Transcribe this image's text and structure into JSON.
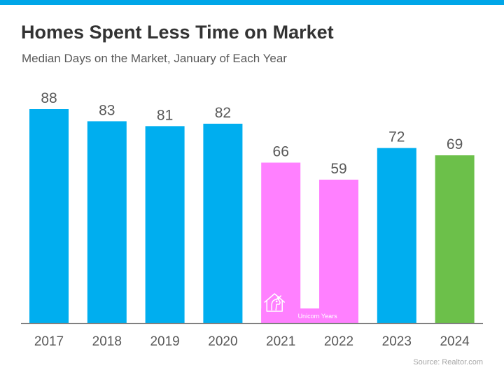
{
  "title": "Homes Spent Less Time on Market",
  "subtitle": "Median Days on the Market, January of Each Year",
  "source": "Source: Realtor.com",
  "colors": {
    "top_bar": "#00A6E8",
    "default_bar": "#00AEEF",
    "unicorn_bar": "#FF80FF",
    "latest_bar": "#6CC04A",
    "axis": "#7F7F7F",
    "labels": "#595959"
  },
  "unicorn_band": {
    "label": "Unicorn Years",
    "icon": "house-unicorn-icon",
    "color": "#FF80FF",
    "years": [
      "2021",
      "2022"
    ]
  },
  "chart_data": {
    "type": "bar",
    "categories": [
      "2017",
      "2018",
      "2019",
      "2020",
      "2021",
      "2022",
      "2023",
      "2024"
    ],
    "values": [
      88,
      83,
      81,
      82,
      66,
      59,
      72,
      69
    ],
    "bar_colors": [
      "#00AEEF",
      "#00AEEF",
      "#00AEEF",
      "#00AEEF",
      "#FF80FF",
      "#FF80FF",
      "#00AEEF",
      "#6CC04A"
    ],
    "title": "Homes Spent Less Time on Market",
    "subtitle": "Median Days on the Market, January of Each Year",
    "xlabel": "",
    "ylabel": "",
    "ylim": [
      0,
      88
    ],
    "grid": false,
    "data_labels": true,
    "legend": "none"
  }
}
